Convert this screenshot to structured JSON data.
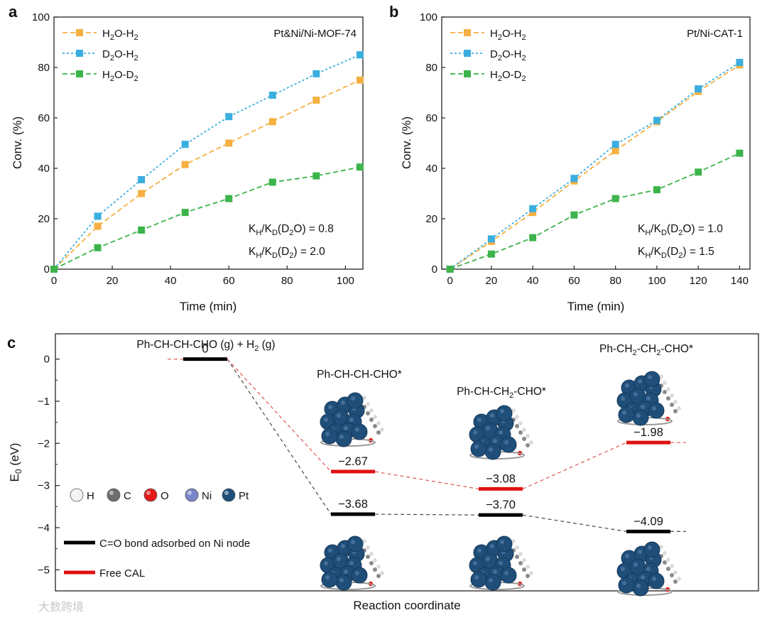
{
  "panels": {
    "a": {
      "letter": "a",
      "title": "Pt&Ni/Ni-MOF-74",
      "ylabel": "Conv. (%)",
      "xlabel": "Time (min)",
      "annotations": [
        "K_H/K_D(D_2O) = 0.8",
        "K_H/K_D(D_2) = 2.0"
      ]
    },
    "b": {
      "letter": "b",
      "title": "Pt/Ni-CAT-1",
      "ylabel": "Conv. (%)",
      "xlabel": "Time (min)",
      "annotations": [
        "K_H/K_D(D_2O) = 1.0",
        "K_H/K_D(D_2) = 1.5"
      ]
    },
    "c": {
      "letter": "c",
      "ylabel": "E_0 (eV)",
      "xlabel": "Reaction coordinate",
      "atom_legend": [
        "H",
        "C",
        "O",
        "Ni",
        "Pt"
      ],
      "atom_colors": [
        "#f2f2f2",
        "#6e6e6e",
        "#e41a1a",
        "#7a86c8",
        "#1f4e79"
      ],
      "path_legend": [
        "C=O bond adsorbed on Ni node",
        "Free CAL"
      ]
    }
  },
  "watermark": "大数跨境",
  "chart_data": [
    {
      "id": "a",
      "type": "line",
      "title": "Pt&Ni/Ni-MOF-74",
      "xlabel": "Time (min)",
      "ylabel": "Conv. (%)",
      "xlim": [
        0,
        106
      ],
      "ylim": [
        0,
        100
      ],
      "xticks": [
        0,
        20,
        40,
        60,
        80,
        100
      ],
      "yticks": [
        0,
        20,
        40,
        60,
        80,
        100
      ],
      "x": [
        0,
        15,
        30,
        45,
        60,
        75,
        90,
        105
      ],
      "legend_position": "top-left",
      "series": [
        {
          "name": "H_2O-H_2",
          "color": "#f5b041",
          "values": [
            0,
            17,
            30,
            41.5,
            50,
            58.5,
            67,
            75
          ]
        },
        {
          "name": "D_2O-H_2",
          "color": "#3aaee0",
          "values": [
            0,
            21,
            35.5,
            49.5,
            60.5,
            69,
            77.5,
            85
          ]
        },
        {
          "name": "H_2O-D_2",
          "color": "#3cb44b",
          "values": [
            0,
            8.5,
            15.5,
            22.5,
            28,
            34.5,
            37,
            40.5
          ]
        }
      ]
    },
    {
      "id": "b",
      "type": "line",
      "title": "Pt/Ni-CAT-1",
      "xlabel": "Time (min)",
      "ylabel": "Conv. (%)",
      "xlim": [
        -4,
        145
      ],
      "ylim": [
        0,
        100
      ],
      "xticks": [
        0,
        20,
        40,
        60,
        80,
        100,
        120,
        140
      ],
      "yticks": [
        0,
        20,
        40,
        60,
        80,
        100
      ],
      "x": [
        0,
        20,
        40,
        60,
        80,
        100,
        120,
        140
      ],
      "legend_position": "top-left",
      "series": [
        {
          "name": "H_2O-H_2",
          "color": "#f5b041",
          "values": [
            0,
            11,
            22.5,
            35,
            47,
            58.5,
            70.5,
            81
          ]
        },
        {
          "name": "D_2O-H_2",
          "color": "#3aaee0",
          "values": [
            0,
            12,
            24,
            36,
            49.5,
            59,
            71.5,
            82
          ]
        },
        {
          "name": "H_2O-D_2",
          "color": "#3cb44b",
          "values": [
            0,
            6,
            12.5,
            21.5,
            28,
            31.5,
            38.5,
            46
          ]
        }
      ]
    },
    {
      "id": "c",
      "type": "line",
      "subtype": "energy-profile",
      "xlabel": "Reaction coordinate",
      "ylabel": "E_0 (eV)",
      "ylim": [
        -5.5,
        0.6
      ],
      "yticks": [
        0,
        -1,
        -2,
        -3,
        -4,
        -5
      ],
      "states": [
        "Ph-CH-CH-CHO (g) + H_2 (g)",
        "Ph-CH-CH-CHO*",
        "Ph-CH-CH_2-CHO*",
        "Ph-CH_2-CH_2-CHO*"
      ],
      "series": [
        {
          "name": "C=O bond adsorbed on Ni node",
          "color": "#000000",
          "line_color": "#555555",
          "values": [
            0,
            -3.68,
            -3.7,
            -4.09
          ],
          "labels": [
            "0",
            "−3.68",
            "−3.70",
            "−4.09"
          ]
        },
        {
          "name": "Free CAL",
          "color": "#e01010",
          "line_color": "#e06060",
          "values": [
            0,
            -2.67,
            -3.08,
            -1.98
          ],
          "labels": [
            "",
            "−2.67",
            "−3.08",
            "−1.98"
          ]
        }
      ]
    }
  ]
}
